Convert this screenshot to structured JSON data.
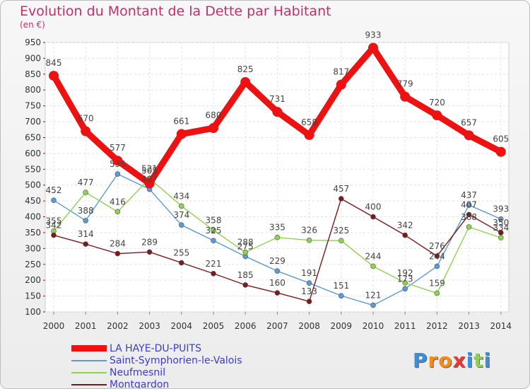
{
  "title": "Evolution du Montant de la Dette par Habitant",
  "subtitle": "(en €)",
  "logo": "Proxiti",
  "chart_data": {
    "type": "line",
    "title": "Evolution du Montant de la Dette par Habitant",
    "subtitle": "(en €)",
    "x": [
      "2000",
      "2001",
      "2002",
      "2003",
      "2004",
      "2005",
      "2006",
      "2007",
      "2008",
      "2009",
      "2010",
      "2011",
      "2012",
      "2013",
      "2014"
    ],
    "ylim": [
      100,
      950
    ],
    "yticks": [
      100,
      150,
      200,
      250,
      300,
      350,
      400,
      450,
      500,
      550,
      600,
      650,
      700,
      750,
      800,
      850,
      900,
      950
    ],
    "grid": true,
    "legend_position": "bottom-left",
    "series": [
      {
        "name": "LA HAYE-DU-PUITS",
        "color": "#ee1111",
        "values": [
          845,
          670,
          577,
          505,
          661,
          680,
          825,
          731,
          658,
          817,
          933,
          779,
          720,
          657,
          605
        ]
      },
      {
        "name": "Saint-Symphorien-le-Valois",
        "color": "#5b9bd5",
        "values": [
          452,
          388,
          535,
          487,
          374,
          325,
          275,
          229,
          191,
          151,
          121,
          173,
          244,
          437,
          393
        ]
      },
      {
        "name": "Neufmesnil",
        "color": "#8ed24f",
        "values": [
          355,
          477,
          416,
          521,
          434,
          358,
          288,
          335,
          326,
          325,
          244,
          192,
          159,
          368,
          334
        ]
      },
      {
        "name": "Montgardon",
        "color": "#7b1a1a",
        "values": [
          342,
          314,
          284,
          289,
          255,
          221,
          185,
          160,
          133,
          457,
          400,
          342,
          276,
          407,
          350
        ]
      }
    ]
  }
}
